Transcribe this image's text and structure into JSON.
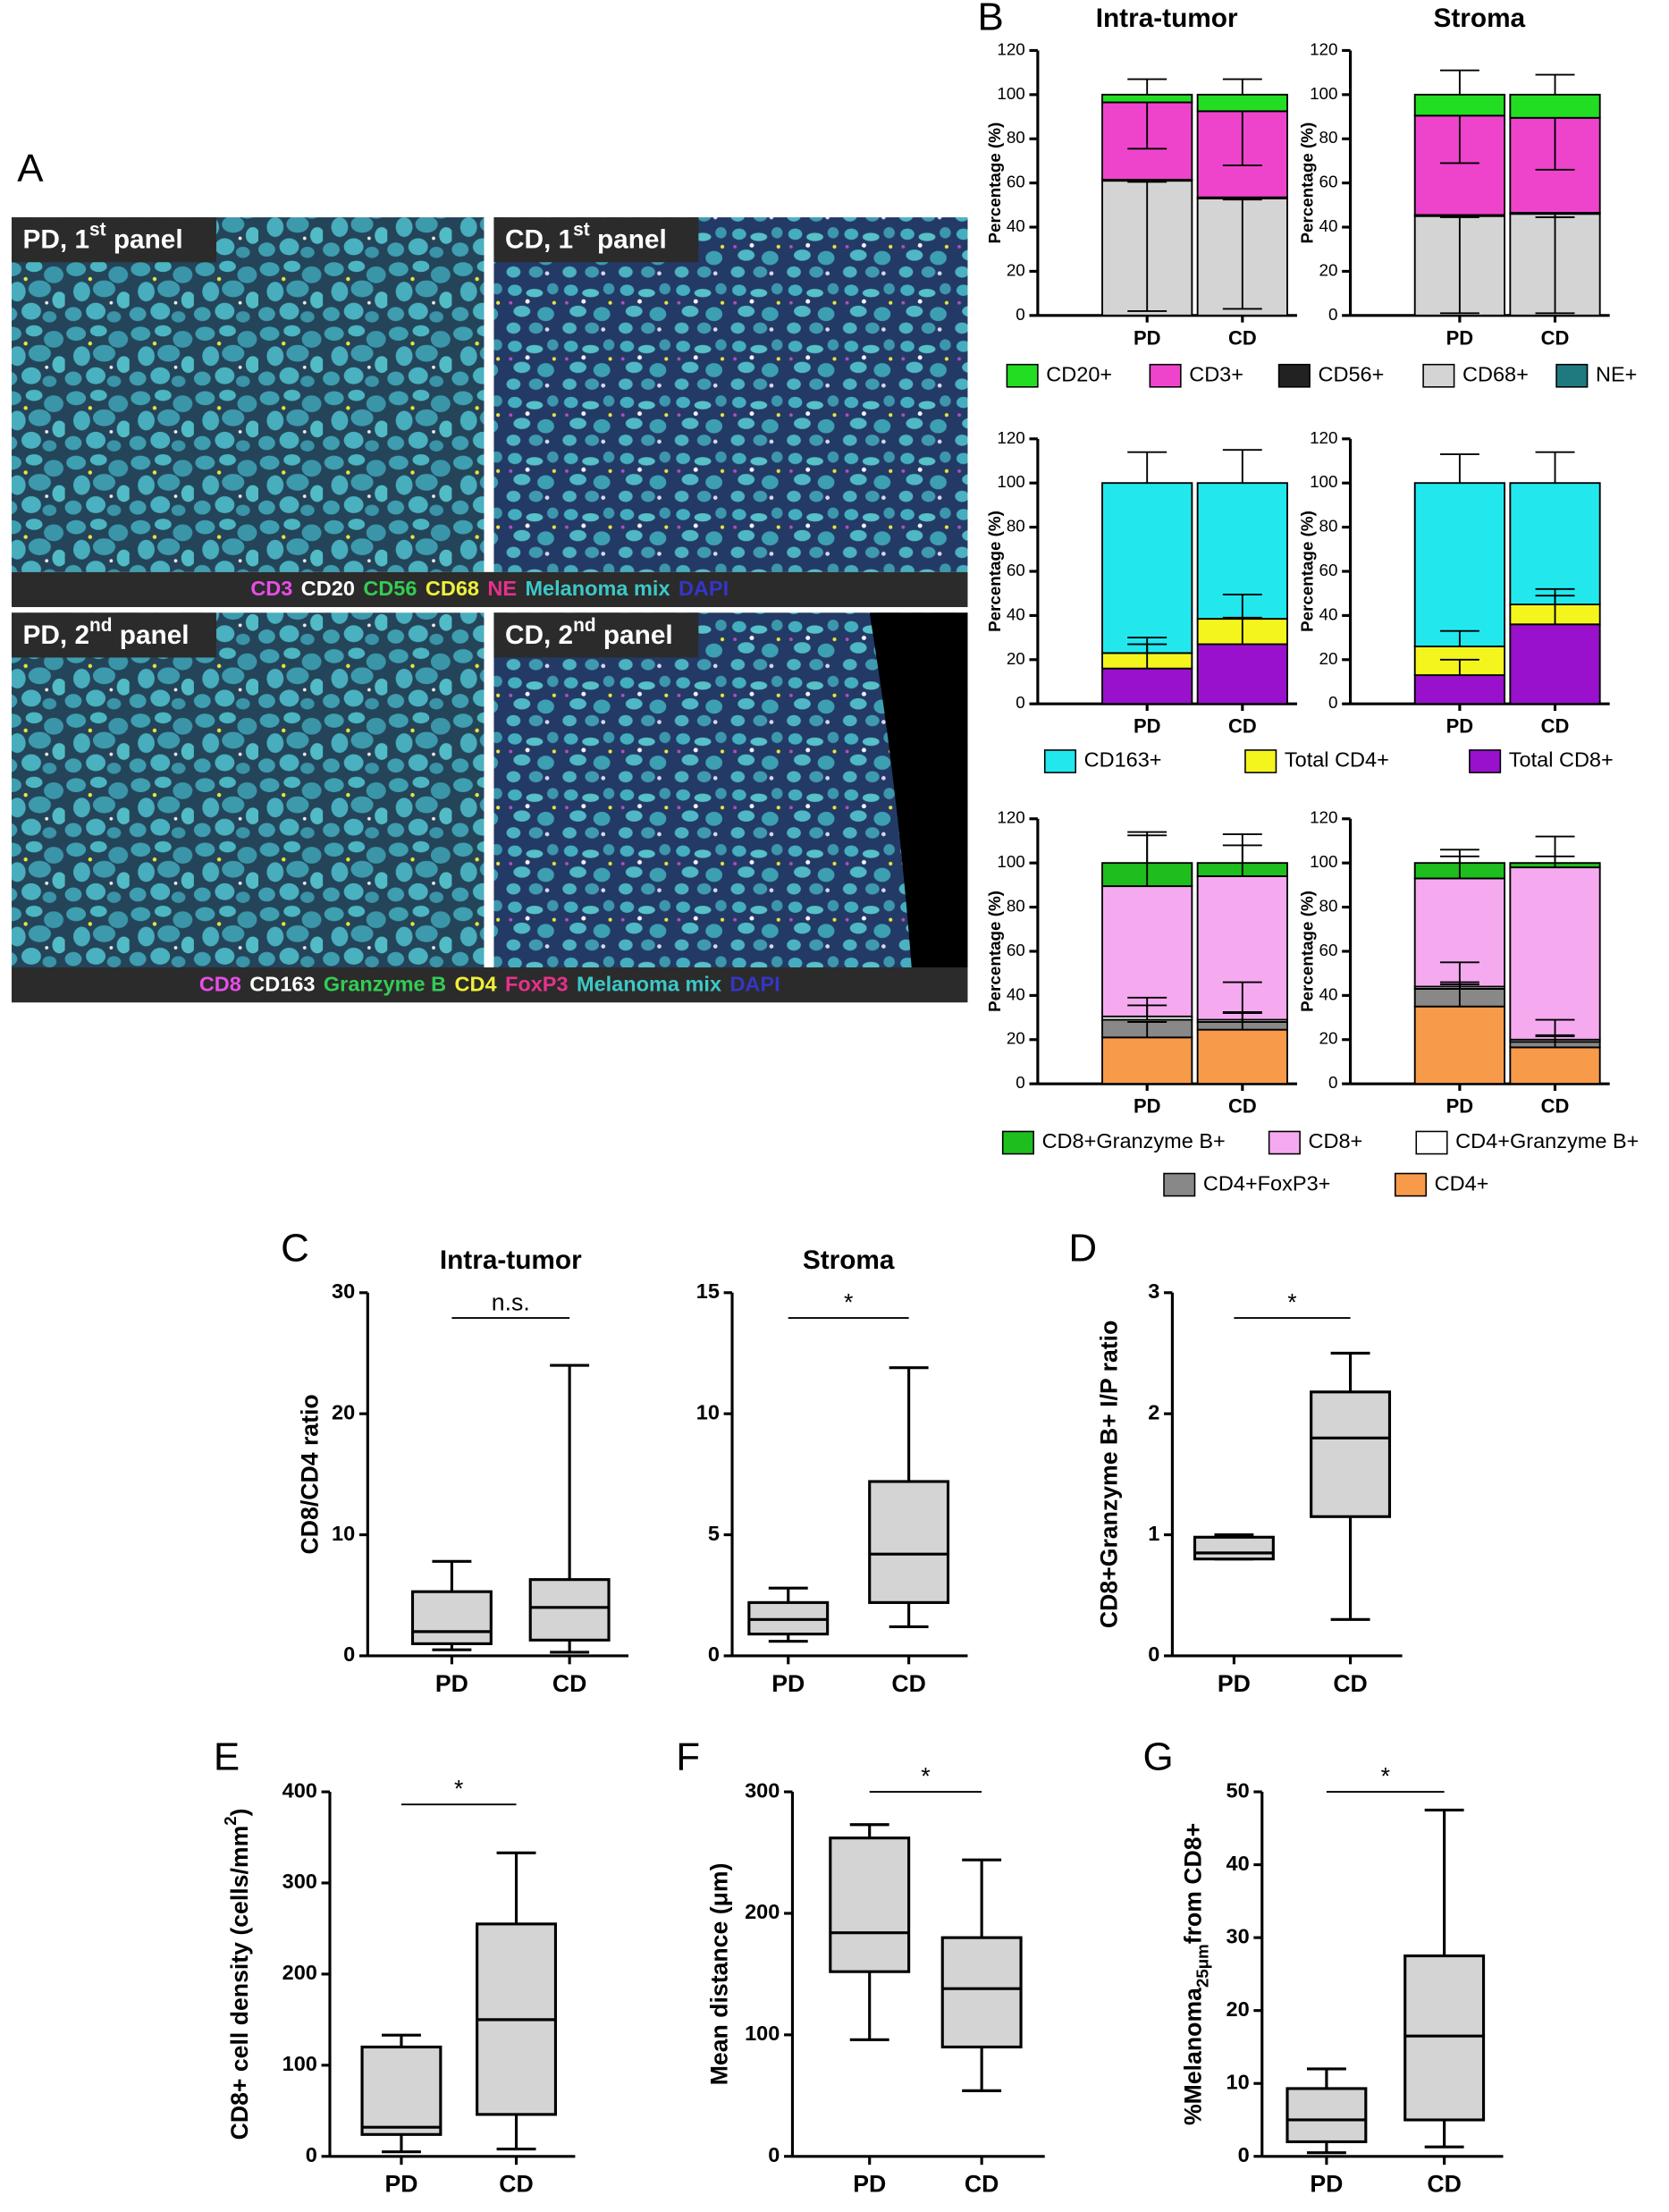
{
  "panel_labels": [
    "A",
    "B",
    "C",
    "D",
    "E",
    "F",
    "G"
  ],
  "images": [
    {
      "label": [
        {
          "text": "PD, 1"
        },
        {
          "text": "st",
          "script": "super"
        },
        {
          "text": " panel"
        }
      ]
    },
    {
      "label": [
        {
          "text": "CD, 1"
        },
        {
          "text": "st",
          "script": "super"
        },
        {
          "text": " panel"
        }
      ]
    },
    {
      "label": [
        {
          "text": "PD, 2"
        },
        {
          "text": "nd",
          "script": "super"
        },
        {
          "text": " panel"
        }
      ]
    },
    {
      "label": [
        {
          "text": "CD, 2"
        },
        {
          "text": "nd",
          "script": "super"
        },
        {
          "text": " panel"
        }
      ]
    }
  ],
  "stain_legends": [
    [
      {
        "text": "CD3",
        "color": "#e84de8"
      },
      {
        "text": "CD20",
        "color": "#ffffff"
      },
      {
        "text": "CD56",
        "color": "#33cc55"
      },
      {
        "text": "CD68",
        "color": "#f0f03c"
      },
      {
        "text": "NE",
        "color": "#e8308c"
      },
      {
        "text": "Melanoma mix",
        "color": "#3cc8c8"
      },
      {
        "text": "DAPI",
        "color": "#3535c8"
      }
    ],
    [
      {
        "text": "CD8",
        "color": "#e84de8"
      },
      {
        "text": "CD163",
        "color": "#ffffff"
      },
      {
        "text": "Granzyme B",
        "color": "#33cc55"
      },
      {
        "text": "CD4",
        "color": "#f0f03c"
      },
      {
        "text": "FoxP3",
        "color": "#e8308c"
      },
      {
        "text": "Melanoma mix",
        "color": "#3cc8c8"
      },
      {
        "text": "DAPI",
        "color": "#3535c8"
      }
    ]
  ],
  "chart_data": [
    {
      "type": "stacked_bar",
      "panel_titles": [
        "Intra-tumor",
        "Stroma"
      ],
      "ylabel": [
        {
          "text": "Percentage (%)"
        }
      ],
      "categories": [
        "PD",
        "CD"
      ],
      "ylim": [
        0,
        120
      ],
      "yticks": [
        0,
        20,
        40,
        60,
        80,
        100,
        120
      ],
      "series": [
        {
          "name": "CD20+",
          "color": "#22dd22",
          "error_direction": "up",
          "values": [
            [
              3.5,
              7.5
            ],
            [
              9.5,
              10.5
            ]
          ],
          "errors": [
            [
              7,
              7
            ],
            [
              11,
              9
            ]
          ]
        },
        {
          "name": "CD3+",
          "color": "#ee44cc",
          "error_direction": "down",
          "values": [
            [
              35,
              39
            ],
            [
              45,
              43
            ]
          ],
          "errors": [
            [
              21,
              24.5
            ],
            [
              21.5,
              23.5
            ]
          ]
        },
        {
          "name": "CD56+",
          "color": "#222222",
          "error_direction": "down",
          "values": [
            [
              0.5,
              0.5
            ],
            [
              0.5,
              0.5
            ]
          ],
          "errors": [
            [
              1,
              1
            ],
            [
              1,
              2
            ]
          ]
        },
        {
          "name": "CD68+",
          "color": "#d4d4d4",
          "error_direction": "down",
          "values": [
            [
              61,
              53
            ],
            [
              45,
              46
            ]
          ],
          "errors": [
            [
              59,
              50
            ],
            [
              44,
              45
            ]
          ]
        },
        {
          "name": "NE+",
          "color": "#1f7a80",
          "error_direction": "up",
          "values": [
            [
              0,
              0
            ],
            [
              0,
              0
            ]
          ]
        }
      ]
    },
    {
      "type": "stacked_bar",
      "ylabel": [
        {
          "text": "Percentage (%)"
        }
      ],
      "categories": [
        "PD",
        "CD"
      ],
      "ylim": [
        0,
        120
      ],
      "yticks": [
        0,
        20,
        40,
        60,
        80,
        100,
        120
      ],
      "series": [
        {
          "name": "CD163+",
          "color": "#22e8ee",
          "error_direction": "up",
          "values": [
            [
              77,
              61.5
            ],
            [
              74,
              55
            ]
          ],
          "errors": [
            [
              14,
              15
            ],
            [
              13,
              14
            ]
          ]
        },
        {
          "name": "Total CD4+",
          "color": "#f5f51e",
          "error_direction": "up",
          "values": [
            [
              7,
              11.5
            ],
            [
              13,
              9
            ]
          ],
          "errors": [
            [
              7,
              11
            ],
            [
              7,
              7
            ]
          ]
        },
        {
          "name": "Total CD8+",
          "color": "#9911cc",
          "error_direction": "up",
          "values": [
            [
              16,
              27
            ],
            [
              13,
              36
            ]
          ],
          "errors": [
            [
              11,
              12
            ],
            [
              7,
              13
            ]
          ]
        }
      ]
    },
    {
      "type": "stacked_bar",
      "ylabel": [
        {
          "text": "Percentage (%)"
        }
      ],
      "categories": [
        "PD",
        "CD"
      ],
      "ylim": [
        0,
        120
      ],
      "yticks": [
        0,
        20,
        40,
        60,
        80,
        100,
        120
      ],
      "series": [
        {
          "name": "CD8+Granzyme B+",
          "color": "#1ebe1e",
          "error_direction": "up",
          "values": [
            [
              10.5,
              6
            ],
            [
              7,
              2
            ]
          ],
          "errors": [
            [
              14,
              13
            ],
            [
              6,
              12
            ]
          ]
        },
        {
          "name": "CD8+",
          "color": "#f5aaf0",
          "error_direction": "up",
          "values": [
            [
              59,
              65
            ],
            [
              49,
              78
            ]
          ],
          "errors": [
            [
              23,
              14
            ],
            [
              10,
              5
            ]
          ]
        },
        {
          "name": "CD4+Granzyme B+",
          "color": "#ffffff",
          "error_direction": "up",
          "values": [
            [
              1.5,
              1
            ],
            [
              1,
              1
            ]
          ],
          "errors": [
            [
              5,
              3
            ],
            [
              2,
              2
            ]
          ]
        },
        {
          "name": "CD4+FoxP3+",
          "color": "#888888",
          "error_direction": "up",
          "values": [
            [
              8,
              3.5
            ],
            [
              8,
              2.5
            ]
          ],
          "errors": [
            [
              10,
              18
            ],
            [
              12,
              10
            ]
          ]
        },
        {
          "name": "CD4+",
          "color": "#f79a4a",
          "error_direction": "up",
          "values": [
            [
              21,
              24.5
            ],
            [
              35,
              16.5
            ]
          ],
          "errors": [
            [
              7,
              8
            ],
            [
              10,
              5
            ]
          ]
        }
      ]
    },
    {
      "type": "box",
      "title": "Intra-tumor",
      "ylabel": [
        {
          "text": "CD8/CD4 ratio"
        }
      ],
      "categories": [
        "PD",
        "CD"
      ],
      "color": "#d4d4d4",
      "min": [
        0.5,
        0.3
      ],
      "q1": [
        1,
        1.3
      ],
      "median": [
        2,
        4
      ],
      "q3": [
        5.3,
        6.3
      ],
      "max": [
        7.8,
        24
      ],
      "ylim": [
        0,
        30
      ],
      "yticks": [
        0,
        10,
        20,
        30
      ],
      "annotation": "n.s."
    },
    {
      "type": "box",
      "title": "Stroma",
      "categories": [
        "PD",
        "CD"
      ],
      "color": "#d4d4d4",
      "min": [
        0.6,
        1.2
      ],
      "q1": [
        0.9,
        2.2
      ],
      "median": [
        1.5,
        4.2
      ],
      "q3": [
        2.2,
        7.2
      ],
      "max": [
        2.8,
        11.9
      ],
      "ylim": [
        0,
        15
      ],
      "yticks": [
        0,
        5,
        10,
        15
      ],
      "annotation": "*"
    },
    {
      "type": "box",
      "ylabel": [
        {
          "text": "CD8+Granzyme B+ I/P ratio"
        }
      ],
      "categories": [
        "PD",
        "CD"
      ],
      "color": "#d4d4d4",
      "min": [
        0.8,
        0.3
      ],
      "q1": [
        0.8,
        1.15
      ],
      "median": [
        0.85,
        1.8
      ],
      "q3": [
        0.98,
        2.18
      ],
      "max": [
        1.0,
        2.5
      ],
      "ylim": [
        0,
        3
      ],
      "yticks": [
        0,
        1,
        2,
        3
      ],
      "annotation": "*"
    },
    {
      "type": "box",
      "ylabel": [
        {
          "text": "CD8+ cell density (cells/mm"
        },
        {
          "text": "2",
          "script": "super"
        },
        {
          "text": ")"
        }
      ],
      "categories": [
        "PD",
        "CD"
      ],
      "color": "#d4d4d4",
      "min": [
        5,
        8
      ],
      "q1": [
        24,
        46
      ],
      "median": [
        32,
        150
      ],
      "q3": [
        120,
        255
      ],
      "max": [
        133,
        333
      ],
      "ylim": [
        0,
        400
      ],
      "yticks": [
        0,
        100,
        200,
        300,
        400
      ],
      "annotation": "*"
    },
    {
      "type": "box",
      "ylabel": [
        {
          "text": "Mean distance (μm)"
        }
      ],
      "categories": [
        "PD",
        "CD"
      ],
      "color": "#d4d4d4",
      "min": [
        96,
        54
      ],
      "q1": [
        152,
        90
      ],
      "median": [
        184,
        138
      ],
      "q3": [
        262,
        180
      ],
      "max": [
        273,
        244
      ],
      "ylim": [
        0,
        300
      ],
      "yticks": [
        0,
        100,
        200,
        300
      ],
      "annotation": "*"
    },
    {
      "type": "box",
      "ylabel": [
        {
          "text": "%Melanoma"
        },
        {
          "text": "25μm",
          "script": "sub"
        },
        {
          "text": "from CD8+"
        }
      ],
      "categories": [
        "PD",
        "CD"
      ],
      "color": "#d4d4d4",
      "min": [
        0.5,
        1.3
      ],
      "q1": [
        2,
        5
      ],
      "median": [
        5,
        16.5
      ],
      "q3": [
        9.3,
        27.5
      ],
      "max": [
        12,
        47.5
      ],
      "ylim": [
        0,
        50
      ],
      "yticks": [
        0,
        10,
        20,
        30,
        40,
        50
      ],
      "annotation": "*"
    }
  ]
}
